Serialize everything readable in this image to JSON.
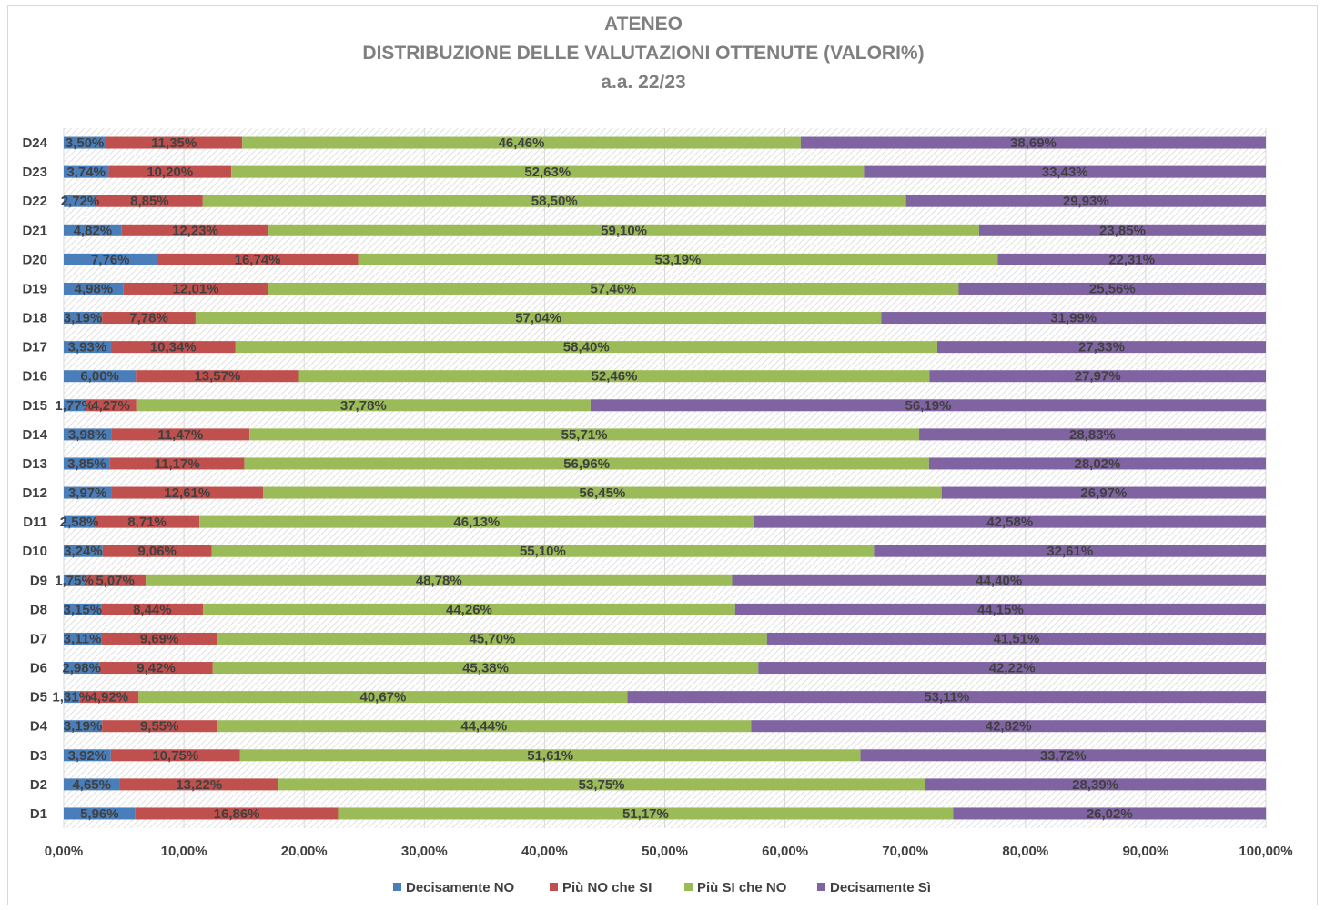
{
  "chart_data": {
    "type": "bar",
    "orientation": "horizontal",
    "stacked": true,
    "title_lines": [
      "ATENEO",
      "DISTRIBUZIONE DELLE VALUTAZIONI OTTENUTE  (VALORI%)",
      "a.a. 22/23"
    ],
    "categories": [
      "D1",
      "D2",
      "D3",
      "D4",
      "D5",
      "D6",
      "D7",
      "D8",
      "D9",
      "D10",
      "D11",
      "D12",
      "D13",
      "D14",
      "D15",
      "D16",
      "D17",
      "D18",
      "D19",
      "D20",
      "D21",
      "D22",
      "D23",
      "D24"
    ],
    "series": [
      {
        "name": "Decisamente NO",
        "color": "#4a7ebb",
        "values": [
          5.96,
          4.65,
          3.92,
          3.19,
          1.31,
          2.98,
          3.11,
          3.15,
          1.75,
          3.24,
          2.58,
          3.97,
          3.85,
          3.98,
          1.77,
          6.0,
          3.93,
          3.19,
          4.98,
          7.76,
          4.82,
          2.72,
          3.74,
          3.5
        ],
        "labels": [
          "5,96%",
          "4,65%",
          "3,92%",
          "3,19%",
          "1,31%",
          "2,98%",
          "3,11%",
          "3,15%",
          "1,75%",
          "3,24%",
          "2,58%",
          "3,97%",
          "3,85%",
          "3,98%",
          "1,77%",
          "6,00%",
          "3,93%",
          "3,19%",
          "4,98%",
          "7,76%",
          "4,82%",
          "2,72%",
          "3,74%",
          "3,50%"
        ]
      },
      {
        "name": "Più NO che SI",
        "color": "#c0504d",
        "values": [
          16.86,
          13.22,
          10.75,
          9.55,
          4.92,
          9.42,
          9.69,
          8.44,
          5.07,
          9.06,
          8.71,
          12.61,
          11.17,
          11.47,
          4.27,
          13.57,
          10.34,
          7.78,
          12.01,
          16.74,
          12.23,
          8.85,
          10.2,
          11.35
        ],
        "labels": [
          "16,86%",
          "13,22%",
          "10,75%",
          "9,55%",
          "4,92%",
          "9,42%",
          "9,69%",
          "8,44%",
          "5,07%",
          "9,06%",
          "8,71%",
          "12,61%",
          "11,17%",
          "11,47%",
          "4,27%",
          "13,57%",
          "10,34%",
          "7,78%",
          "12,01%",
          "16,74%",
          "12,23%",
          "8,85%",
          "10,20%",
          "11,35%"
        ]
      },
      {
        "name": "Più SI che NO",
        "color": "#9bbb59",
        "values": [
          51.17,
          53.75,
          51.61,
          44.44,
          40.67,
          45.38,
          45.7,
          44.26,
          48.78,
          55.1,
          46.13,
          56.45,
          56.96,
          55.71,
          37.78,
          52.46,
          58.4,
          57.04,
          57.46,
          53.19,
          59.1,
          58.5,
          52.63,
          46.46
        ],
        "labels": [
          "51,17%",
          "53,75%",
          "51,61%",
          "44,44%",
          "40,67%",
          "45,38%",
          "45,70%",
          "44,26%",
          "48,78%",
          "55,10%",
          "46,13%",
          "56,45%",
          "56,96%",
          "55,71%",
          "37,78%",
          "52,46%",
          "58,40%",
          "57,04%",
          "57,46%",
          "53,19%",
          "59,10%",
          "58,50%",
          "52,63%",
          "46,46%"
        ]
      },
      {
        "name": "Decisamente Sì",
        "color": "#8064a2",
        "values": [
          26.02,
          28.39,
          33.72,
          42.82,
          53.11,
          42.22,
          41.51,
          44.15,
          44.4,
          32.61,
          42.58,
          26.97,
          28.02,
          28.83,
          56.19,
          27.97,
          27.33,
          31.99,
          25.56,
          22.31,
          23.85,
          29.93,
          33.43,
          38.69
        ],
        "labels": [
          "26,02%",
          "28,39%",
          "33,72%",
          "42,82%",
          "53,11%",
          "42,22%",
          "41,51%",
          "44,15%",
          "44,40%",
          "32,61%",
          "42,58%",
          "26,97%",
          "28,02%",
          "28,83%",
          "56,19%",
          "27,97%",
          "27,33%",
          "31,99%",
          "25,56%",
          "22,31%",
          "23,85%",
          "29,93%",
          "33,43%",
          "38,69%"
        ]
      }
    ],
    "xlim": [
      0,
      100
    ],
    "x_ticks": [
      "0,00%",
      "10,00%",
      "20,00%",
      "30,00%",
      "40,00%",
      "50,00%",
      "60,00%",
      "70,00%",
      "80,00%",
      "90,00%",
      "100,00%"
    ],
    "grid": true,
    "plot_background": "hatched",
    "legend_position": "bottom"
  }
}
